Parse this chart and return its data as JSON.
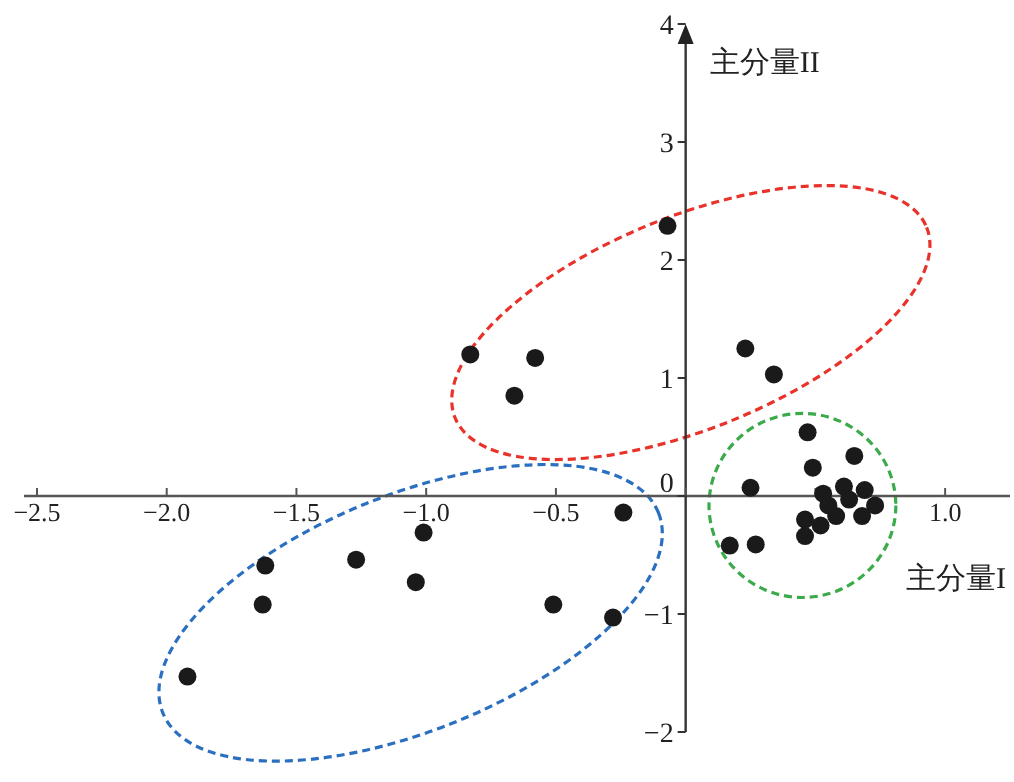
{
  "chart_data": {
    "type": "scatter",
    "xlabel": "主分量I",
    "ylabel": "主分量II",
    "marker": "circle",
    "xlim": [
      -2.55,
      1.25
    ],
    "ylim": [
      -2,
      4
    ],
    "xticks": [
      {
        "value": -2.5,
        "label": "−2.5"
      },
      {
        "value": -2.0,
        "label": "−2.0"
      },
      {
        "value": -1.5,
        "label": "−1.5"
      },
      {
        "value": -1.0,
        "label": "−1.0"
      },
      {
        "value": -0.5,
        "label": "−0.5"
      },
      {
        "value": 0,
        "label": null
      },
      {
        "value": 0.5,
        "label": null
      },
      {
        "value": 1.0,
        "label": "1.0"
      }
    ],
    "yticks": [
      {
        "value": -2,
        "label": "−2"
      },
      {
        "value": -1,
        "label": "−1"
      },
      0,
      1,
      2,
      3,
      4
    ],
    "series": [
      {
        "color": "#1a1a1a",
        "x": [
          -0.07,
          -0.83,
          -0.58,
          -0.66,
          0.23,
          0.34,
          -1.92,
          -1.62,
          -1.63,
          -1.27,
          -1.01,
          -1.04,
          -0.51,
          -0.28,
          -0.24,
          0.47,
          0.49,
          0.65,
          0.25,
          0.17,
          0.27,
          0.53,
          0.61,
          0.69,
          0.73,
          0.58,
          0.52,
          0.46,
          0.46,
          0.63,
          0.55,
          0.68
        ],
        "values": [
          2.29,
          1.2,
          1.17,
          0.85,
          1.25,
          1.03,
          -1.53,
          -0.59,
          -0.92,
          -0.54,
          -0.31,
          -0.73,
          -0.92,
          -1.03,
          -0.14,
          0.54,
          0.24,
          0.34,
          0.07,
          -0.42,
          -0.41,
          0.02,
          0.08,
          0.05,
          -0.08,
          -0.17,
          -0.25,
          -0.34,
          -0.2,
          -0.03,
          -0.08,
          -0.17
        ]
      }
    ]
  }
}
